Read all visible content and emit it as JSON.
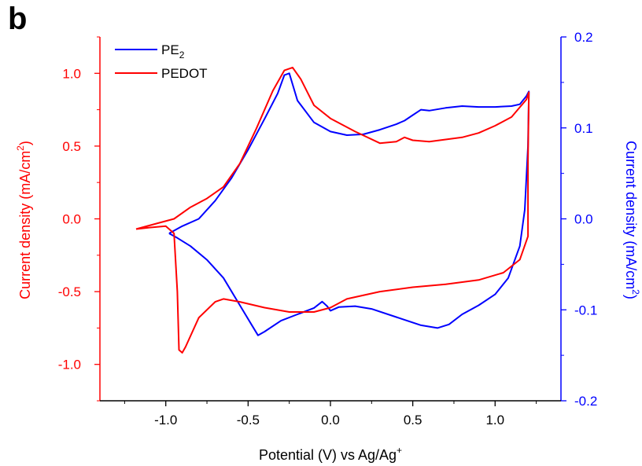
{
  "panel_label": "b",
  "colors": {
    "left": "#ff0000",
    "right": "#0000ff",
    "bottom": "#000000"
  },
  "chart_data": {
    "type": "line",
    "title": "",
    "xlabel": {
      "main": "Potential (V) vs Ag/Ag",
      "sup": "+"
    },
    "ylabel_left": {
      "main": "Current density (mA/cm",
      "sup": "2",
      "tail": ")"
    },
    "ylabel_right": {
      "main": "Current density (mA/cm",
      "sup": "2",
      "tail": ")"
    },
    "xlim": [
      -1.4,
      1.4
    ],
    "ylim_left": [
      -1.25,
      1.25
    ],
    "ylim_right": [
      -0.2,
      0.2
    ],
    "x_ticks": [
      "-1.0",
      "-0.5",
      "0.0",
      "0.5",
      "1.0"
    ],
    "y_left_ticks": [
      "-1.0",
      "-0.5",
      "0.0",
      "0.5",
      "1.0"
    ],
    "y_right_ticks": [
      "-0.2",
      "-0.1",
      "0.0",
      "0.1",
      "0.2"
    ],
    "legend_position": "top-left",
    "series": [
      {
        "name": "PE",
        "name_sub": "2",
        "axis": "right",
        "color": "#0000ff",
        "points": [
          [
            -0.98,
            -0.016
          ],
          [
            -0.93,
            -0.021
          ],
          [
            -0.85,
            -0.03
          ],
          [
            -0.75,
            -0.045
          ],
          [
            -0.65,
            -0.065
          ],
          [
            -0.55,
            -0.095
          ],
          [
            -0.48,
            -0.116
          ],
          [
            -0.44,
            -0.128
          ],
          [
            -0.4,
            -0.124
          ],
          [
            -0.3,
            -0.112
          ],
          [
            -0.2,
            -0.105
          ],
          [
            -0.1,
            -0.098
          ],
          [
            -0.05,
            -0.091
          ],
          [
            -0.02,
            -0.096
          ],
          [
            0.0,
            -0.101
          ],
          [
            0.05,
            -0.097
          ],
          [
            0.15,
            -0.096
          ],
          [
            0.25,
            -0.099
          ],
          [
            0.4,
            -0.108
          ],
          [
            0.55,
            -0.117
          ],
          [
            0.65,
            -0.12
          ],
          [
            0.72,
            -0.116
          ],
          [
            0.8,
            -0.105
          ],
          [
            0.9,
            -0.095
          ],
          [
            1.0,
            -0.083
          ],
          [
            1.08,
            -0.065
          ],
          [
            1.15,
            -0.03
          ],
          [
            1.18,
            0.01
          ],
          [
            1.2,
            0.08
          ],
          [
            1.205,
            0.14
          ],
          [
            1.19,
            0.135
          ],
          [
            1.15,
            0.126
          ],
          [
            1.1,
            0.124
          ],
          [
            1.0,
            0.123
          ],
          [
            0.9,
            0.123
          ],
          [
            0.8,
            0.124
          ],
          [
            0.7,
            0.122
          ],
          [
            0.6,
            0.119
          ],
          [
            0.55,
            0.12
          ],
          [
            0.5,
            0.114
          ],
          [
            0.45,
            0.108
          ],
          [
            0.4,
            0.104
          ],
          [
            0.3,
            0.098
          ],
          [
            0.2,
            0.093
          ],
          [
            0.1,
            0.092
          ],
          [
            0.0,
            0.096
          ],
          [
            -0.1,
            0.106
          ],
          [
            -0.2,
            0.13
          ],
          [
            -0.25,
            0.16
          ],
          [
            -0.28,
            0.158
          ],
          [
            -0.32,
            0.138
          ],
          [
            -0.4,
            0.11
          ],
          [
            -0.5,
            0.076
          ],
          [
            -0.6,
            0.045
          ],
          [
            -0.7,
            0.02
          ],
          [
            -0.8,
            0.0
          ],
          [
            -0.9,
            -0.008
          ],
          [
            -0.98,
            -0.016
          ]
        ]
      },
      {
        "name": "PEDOT",
        "axis": "left",
        "color": "#ff0000",
        "points": [
          [
            -1.18,
            -0.07
          ],
          [
            -1.1,
            -0.06
          ],
          [
            -1.0,
            -0.05
          ],
          [
            -0.95,
            -0.1
          ],
          [
            -0.93,
            -0.5
          ],
          [
            -0.92,
            -0.9
          ],
          [
            -0.9,
            -0.92
          ],
          [
            -0.88,
            -0.88
          ],
          [
            -0.8,
            -0.68
          ],
          [
            -0.7,
            -0.57
          ],
          [
            -0.65,
            -0.55
          ],
          [
            -0.55,
            -0.57
          ],
          [
            -0.4,
            -0.61
          ],
          [
            -0.25,
            -0.64
          ],
          [
            -0.1,
            -0.64
          ],
          [
            0.0,
            -0.61
          ],
          [
            0.1,
            -0.55
          ],
          [
            0.3,
            -0.5
          ],
          [
            0.5,
            -0.47
          ],
          [
            0.7,
            -0.45
          ],
          [
            0.9,
            -0.42
          ],
          [
            1.05,
            -0.37
          ],
          [
            1.15,
            -0.28
          ],
          [
            1.2,
            -0.12
          ],
          [
            1.2,
            0.4
          ],
          [
            1.205,
            0.87
          ],
          [
            1.19,
            0.82
          ],
          [
            1.1,
            0.7
          ],
          [
            1.0,
            0.64
          ],
          [
            0.9,
            0.59
          ],
          [
            0.8,
            0.56
          ],
          [
            0.6,
            0.53
          ],
          [
            0.5,
            0.54
          ],
          [
            0.45,
            0.56
          ],
          [
            0.4,
            0.53
          ],
          [
            0.3,
            0.52
          ],
          [
            0.15,
            0.6
          ],
          [
            0.0,
            0.69
          ],
          [
            -0.1,
            0.78
          ],
          [
            -0.18,
            0.96
          ],
          [
            -0.23,
            1.04
          ],
          [
            -0.28,
            1.02
          ],
          [
            -0.35,
            0.88
          ],
          [
            -0.45,
            0.62
          ],
          [
            -0.55,
            0.38
          ],
          [
            -0.65,
            0.22
          ],
          [
            -0.75,
            0.14
          ],
          [
            -0.85,
            0.08
          ],
          [
            -0.95,
            0.0
          ],
          [
            -1.05,
            -0.03
          ],
          [
            -1.18,
            -0.07
          ]
        ]
      }
    ]
  }
}
